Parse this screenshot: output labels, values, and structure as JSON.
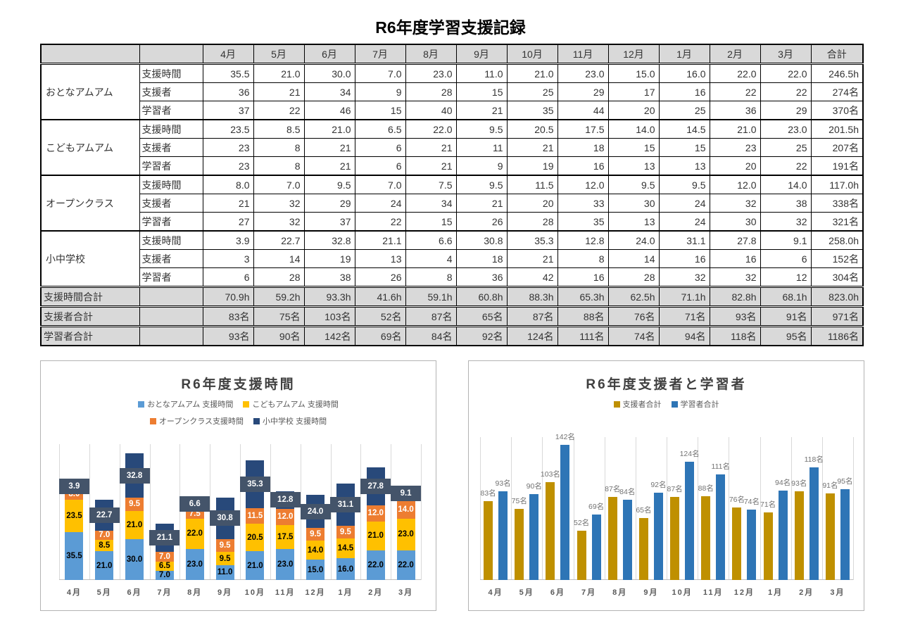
{
  "page_title": "R6年度学習支援記録",
  "table": {
    "month_headers": [
      "4月",
      "5月",
      "6月",
      "7月",
      "8月",
      "9月",
      "10月",
      "11月",
      "12月",
      "1月",
      "2月",
      "3月"
    ],
    "total_header": "合計",
    "groups": [
      {
        "name": "おとなアムアム",
        "rows": [
          {
            "label": "支援時間",
            "values": [
              "35.5",
              "21.0",
              "30.0",
              "7.0",
              "23.0",
              "11.0",
              "21.0",
              "23.0",
              "15.0",
              "16.0",
              "22.0",
              "22.0"
            ],
            "total": "246.5h"
          },
          {
            "label": "支援者",
            "values": [
              "36",
              "21",
              "34",
              "9",
              "28",
              "15",
              "25",
              "29",
              "17",
              "16",
              "22",
              "22"
            ],
            "total": "274名"
          },
          {
            "label": "学習者",
            "values": [
              "37",
              "22",
              "46",
              "15",
              "40",
              "21",
              "35",
              "44",
              "20",
              "25",
              "36",
              "29"
            ],
            "total": "370名"
          }
        ]
      },
      {
        "name": "こどもアムアム",
        "rows": [
          {
            "label": "支援時間",
            "values": [
              "23.5",
              "8.5",
              "21.0",
              "6.5",
              "22.0",
              "9.5",
              "20.5",
              "17.5",
              "14.0",
              "14.5",
              "21.0",
              "23.0"
            ],
            "total": "201.5h"
          },
          {
            "label": "支援者",
            "values": [
              "23",
              "8",
              "21",
              "6",
              "21",
              "11",
              "21",
              "18",
              "15",
              "15",
              "23",
              "25"
            ],
            "total": "207名"
          },
          {
            "label": "学習者",
            "values": [
              "23",
              "8",
              "21",
              "6",
              "21",
              "9",
              "19",
              "16",
              "13",
              "13",
              "20",
              "22"
            ],
            "total": "191名"
          }
        ]
      },
      {
        "name": "オープンクラス",
        "rows": [
          {
            "label": "支援時間",
            "values": [
              "8.0",
              "7.0",
              "9.5",
              "7.0",
              "7.5",
              "9.5",
              "11.5",
              "12.0",
              "9.5",
              "9.5",
              "12.0",
              "14.0"
            ],
            "total": "117.0h"
          },
          {
            "label": "支援者",
            "values": [
              "21",
              "32",
              "29",
              "24",
              "34",
              "21",
              "20",
              "33",
              "30",
              "24",
              "32",
              "38"
            ],
            "total": "338名"
          },
          {
            "label": "学習者",
            "values": [
              "27",
              "32",
              "37",
              "22",
              "15",
              "26",
              "28",
              "35",
              "13",
              "24",
              "30",
              "32"
            ],
            "total": "321名"
          }
        ]
      },
      {
        "name": "小中学校",
        "rows": [
          {
            "label": "支援時間",
            "values": [
              "3.9",
              "22.7",
              "32.8",
              "21.1",
              "6.6",
              "30.8",
              "35.3",
              "12.8",
              "24.0",
              "31.1",
              "27.8",
              "9.1"
            ],
            "total": "258.0h"
          },
          {
            "label": "支援者",
            "values": [
              "3",
              "14",
              "19",
              "13",
              "4",
              "18",
              "21",
              "8",
              "14",
              "16",
              "16",
              "6"
            ],
            "total": "152名"
          },
          {
            "label": "学習者",
            "values": [
              "6",
              "28",
              "38",
              "26",
              "8",
              "36",
              "42",
              "16",
              "28",
              "32",
              "32",
              "12"
            ],
            "total": "304名"
          }
        ]
      }
    ],
    "summary_rows": [
      {
        "label": "支援時間合計",
        "values": [
          "70.9h",
          "59.2h",
          "93.3h",
          "41.6h",
          "59.1h",
          "60.8h",
          "88.3h",
          "65.3h",
          "62.5h",
          "71.1h",
          "82.8h",
          "68.1h"
        ],
        "total": "823.0h"
      },
      {
        "label": "支援者合計",
        "values": [
          "83名",
          "75名",
          "103名",
          "52名",
          "87名",
          "65名",
          "87名",
          "88名",
          "76名",
          "71名",
          "93名",
          "91名"
        ],
        "total": "971名"
      },
      {
        "label": "学習者合計",
        "values": [
          "93名",
          "90名",
          "142名",
          "69名",
          "84名",
          "92名",
          "124名",
          "111名",
          "74名",
          "94名",
          "118名",
          "95名"
        ],
        "total": "1186名"
      }
    ]
  },
  "chart_data": [
    {
      "type": "bar",
      "stacked": true,
      "title": "R6年度支援時間",
      "categories": [
        "4月",
        "5月",
        "6月",
        "7月",
        "8月",
        "9月",
        "10月",
        "11月",
        "12月",
        "1月",
        "2月",
        "3月"
      ],
      "series": [
        {
          "name": "おとなアムアム 支援時間",
          "color": "#5B9BD5",
          "values": [
            35.5,
            21.0,
            30.0,
            7.0,
            23.0,
            11.0,
            21.0,
            23.0,
            15.0,
            16.0,
            22.0,
            22.0
          ]
        },
        {
          "name": "こどもアムアム 支援時間",
          "color": "#FFC000",
          "values": [
            23.5,
            8.5,
            21.0,
            6.5,
            22.0,
            9.5,
            20.5,
            17.5,
            14.0,
            14.5,
            21.0,
            23.0
          ]
        },
        {
          "name": "オープンクラス支援時間",
          "color": "#ED7D31",
          "values": [
            8.0,
            7.0,
            9.5,
            7.0,
            7.5,
            9.5,
            11.5,
            12.0,
            9.5,
            9.5,
            12.0,
            14.0
          ]
        },
        {
          "name": "小中学校 支援時間",
          "color": "#28497A",
          "values": [
            3.9,
            22.7,
            32.8,
            21.1,
            6.6,
            30.8,
            35.3,
            12.8,
            24.0,
            31.1,
            27.8,
            9.1
          ]
        }
      ],
      "label_decimals": 1,
      "label_box_color": "#44546A",
      "xlabel": "",
      "ylabel": "",
      "ylim": [
        0,
        100
      ],
      "grid": "vertical",
      "legend_position": "top"
    },
    {
      "type": "bar",
      "stacked": false,
      "title": "R6年度支援者と学習者",
      "categories": [
        "4月",
        "5月",
        "6月",
        "7月",
        "8月",
        "9月",
        "10月",
        "11月",
        "12月",
        "1月",
        "2月",
        "3月"
      ],
      "series": [
        {
          "name": "支援者合計",
          "color": "#BF9000",
          "values": [
            83,
            75,
            103,
            52,
            87,
            65,
            87,
            88,
            76,
            71,
            93,
            91
          ]
        },
        {
          "name": "学習者合計",
          "color": "#2E75B6",
          "values": [
            93,
            90,
            142,
            69,
            84,
            92,
            124,
            111,
            74,
            94,
            118,
            95
          ]
        }
      ],
      "label_suffix": "名",
      "xlabel": "",
      "ylabel": "",
      "ylim": [
        0,
        150
      ],
      "grid": "vertical",
      "legend_position": "top"
    }
  ]
}
